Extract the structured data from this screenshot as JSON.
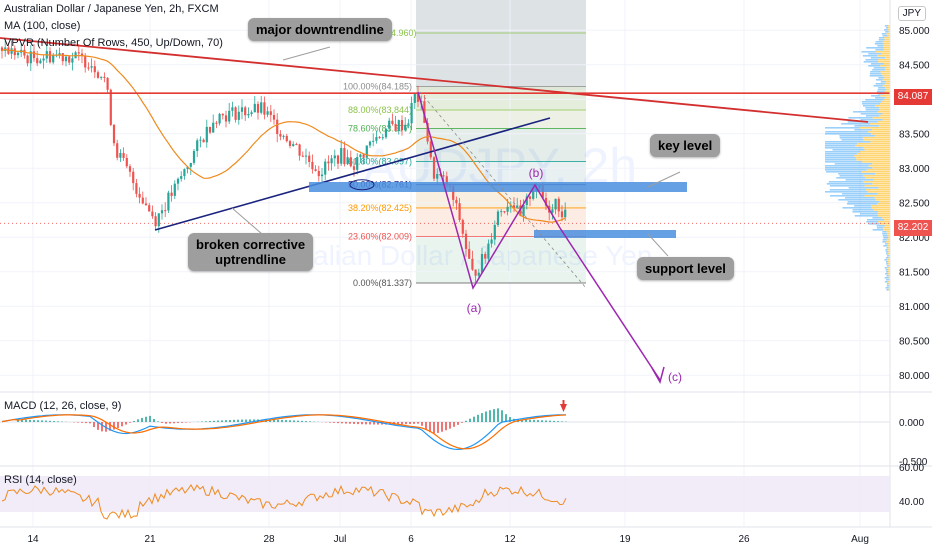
{
  "header": {
    "title": "Australian Dollar / Japanese Yen, 2h, FXCM",
    "indicator_ma": "MA (100, close)",
    "indicator_vpvr": "VPVR (Number Of Rows, 450, Up/Down, 70)",
    "macd_label": "MACD (12, 26, close, 9)",
    "rsi_label": "RSI (14, close)",
    "currency_button": "JPY"
  },
  "watermark": {
    "symbol": "AUDJPY, 2h",
    "name": "Australian Dollar / Japanese Yen"
  },
  "annotations": {
    "major_downtrendline": "major downtrendline",
    "broken_uptrendline_line1": "broken corrective",
    "broken_uptrendline_line2": "uptrendline",
    "key_level": "key level",
    "support_level": "support level",
    "wave_a": "(a)",
    "wave_b": "(b)",
    "wave_c": "(c)"
  },
  "price_tags": {
    "resistance": "84.087",
    "current": "82.202"
  },
  "colors": {
    "up": "#26a69a",
    "down": "#ef5350",
    "resistance": "#e53935",
    "downtrend": "#d32f2f",
    "uptrend": "#1a237e",
    "ma": "#ef8a1e",
    "elliott": "#9c27b0",
    "zone": "#4a8fdf",
    "macd_line": "#2196f3",
    "signal_line": "#ff6d00",
    "rsi_line": "#ef8a1e"
  },
  "chart_data": {
    "type": "candlestick",
    "symbol": "AUDJPY",
    "timeframe": "2h",
    "x_ticks": [
      "14",
      "21",
      "28",
      "Jul",
      "6",
      "12",
      "19",
      "26",
      "Aug"
    ],
    "y_ticks": [
      "85.000",
      "84.500",
      "84.000",
      "83.500",
      "83.000",
      "82.500",
      "82.000",
      "81.500",
      "81.000",
      "80.500",
      "80.000"
    ],
    "ylim": [
      79.95,
      85.2
    ],
    "fibonacci": [
      {
        "label": "100.00%(84.185)",
        "value": 84.185
      },
      {
        "label": "88.00%(83.844)",
        "value": 83.844
      },
      {
        "label": "78.60%(83.577)",
        "value": 83.577
      },
      {
        "label": "61.80%(83.097)",
        "value": 83.097
      },
      {
        "label": "50.00%(82.761)",
        "value": 82.761
      },
      {
        "label": "38.20%(82.425)",
        "value": 82.425
      },
      {
        "label": "23.60%(82.009)",
        "value": 82.009
      },
      {
        "label": "0.00%(81.337)",
        "value": 81.337
      },
      {
        "label": "(84.960)",
        "value": 84.96
      }
    ],
    "levels": {
      "resistance": 84.087,
      "current": 82.202,
      "key_level": 82.761
    },
    "macd": {
      "label": "MACD (12, 26, close, 9)",
      "y_ticks": [
        "0.000",
        "-0.500"
      ],
      "ylim": [
        -0.6,
        0.3
      ]
    },
    "rsi": {
      "label": "RSI (14, close)",
      "y_ticks": [
        "60.00",
        "40.00"
      ],
      "ylim": [
        27,
        67
      ]
    }
  }
}
